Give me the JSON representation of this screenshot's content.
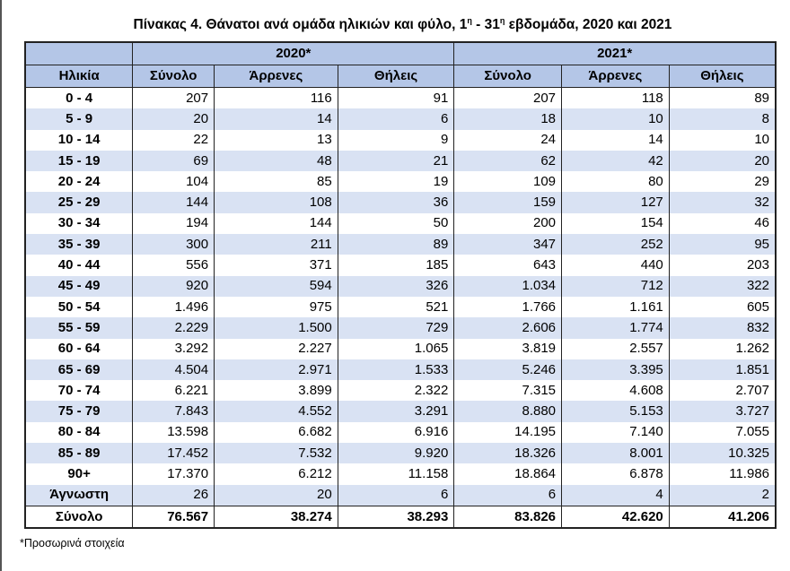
{
  "title": {
    "text_before": "Πίνακας 4. Θάνατοι ανά ομάδα ηλικιών και φύλο, 1",
    "sup1": "η",
    "mid": " - 31",
    "sup2": "η",
    "text_after": " εβδομάδα, 2020 και 2021"
  },
  "header": {
    "years": [
      "2020*",
      "2021*"
    ],
    "age_label": "Ηλικία",
    "columns": [
      "Σύνολο",
      "Άρρενες",
      "Θήλεις",
      "Σύνολο",
      "Άρρενες",
      "Θήλεις"
    ]
  },
  "rows": [
    [
      "0 - 4",
      "207",
      "116",
      "91",
      "207",
      "118",
      "89"
    ],
    [
      "5 - 9",
      "20",
      "14",
      "6",
      "18",
      "10",
      "8"
    ],
    [
      "10 - 14",
      "22",
      "13",
      "9",
      "24",
      "14",
      "10"
    ],
    [
      "15 - 19",
      "69",
      "48",
      "21",
      "62",
      "42",
      "20"
    ],
    [
      "20 - 24",
      "104",
      "85",
      "19",
      "109",
      "80",
      "29"
    ],
    [
      "25 - 29",
      "144",
      "108",
      "36",
      "159",
      "127",
      "32"
    ],
    [
      "30 - 34",
      "194",
      "144",
      "50",
      "200",
      "154",
      "46"
    ],
    [
      "35 - 39",
      "300",
      "211",
      "89",
      "347",
      "252",
      "95"
    ],
    [
      "40 - 44",
      "556",
      "371",
      "185",
      "643",
      "440",
      "203"
    ],
    [
      "45 - 49",
      "920",
      "594",
      "326",
      "1.034",
      "712",
      "322"
    ],
    [
      "50 - 54",
      "1.496",
      "975",
      "521",
      "1.766",
      "1.161",
      "605"
    ],
    [
      "55 - 59",
      "2.229",
      "1.500",
      "729",
      "2.606",
      "1.774",
      "832"
    ],
    [
      "60 - 64",
      "3.292",
      "2.227",
      "1.065",
      "3.819",
      "2.557",
      "1.262"
    ],
    [
      "65 - 69",
      "4.504",
      "2.971",
      "1.533",
      "5.246",
      "3.395",
      "1.851"
    ],
    [
      "70 - 74",
      "6.221",
      "3.899",
      "2.322",
      "7.315",
      "4.608",
      "2.707"
    ],
    [
      "75 - 79",
      "7.843",
      "4.552",
      "3.291",
      "8.880",
      "5.153",
      "3.727"
    ],
    [
      "80 - 84",
      "13.598",
      "6.682",
      "6.916",
      "14.195",
      "7.140",
      "7.055"
    ],
    [
      "85 - 89",
      "17.452",
      "7.532",
      "9.920",
      "18.326",
      "8.001",
      "10.325"
    ],
    [
      "90+",
      "17.370",
      "6.212",
      "11.158",
      "18.864",
      "6.878",
      "11.986"
    ],
    [
      "Άγνωστη",
      "26",
      "20",
      "6",
      "6",
      "4",
      "2"
    ]
  ],
  "total": [
    "Σύνολο",
    "76.567",
    "38.274",
    "38.293",
    "83.826",
    "42.620",
    "41.206"
  ],
  "footnote": "*Προσωρινά στοιχεία",
  "colors": {
    "header_bg": "#b4c6e7",
    "stripe_bg": "#d9e2f3"
  }
}
